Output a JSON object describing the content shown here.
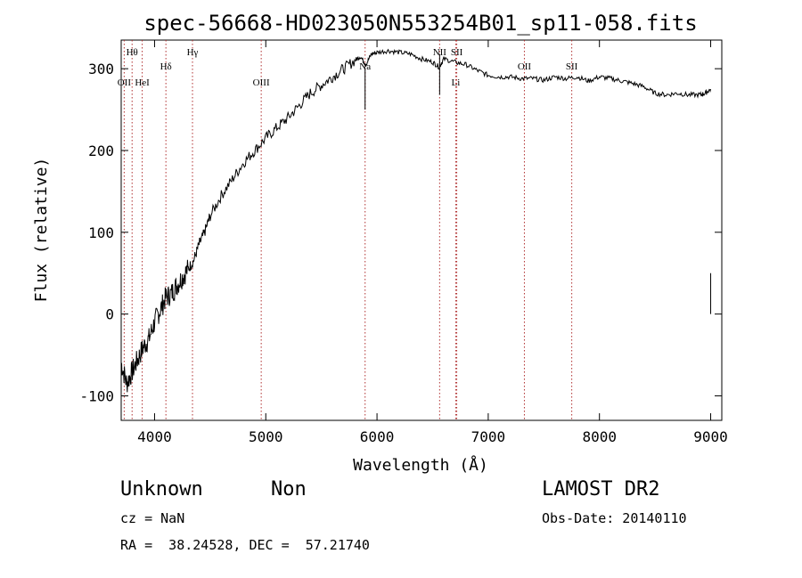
{
  "chart_data": {
    "type": "line",
    "title": "spec-56668-HD023050N553254B01_sp11-058.fits",
    "xlabel": "Wavelength (Å)",
    "ylabel": "Flux (relative)",
    "xlim": [
      3700,
      9100
    ],
    "ylim": [
      -130,
      335
    ],
    "xticks": [
      "4000",
      "5000",
      "6000",
      "7000",
      "8000",
      "9000"
    ],
    "yticks": [
      "-100",
      "0",
      "100",
      "200",
      "300"
    ],
    "grid": false,
    "series": [
      {
        "x": [
          3700,
          3750,
          3800,
          3850,
          3900,
          3950,
          4000,
          4050,
          4100,
          4150,
          4200,
          4250,
          4300,
          4350,
          4400,
          4450,
          4500,
          4600,
          4700,
          4800,
          4900,
          5000,
          5100,
          5200,
          5300,
          5400,
          5500,
          5600,
          5700,
          5800,
          5850,
          5900,
          5950,
          6000,
          6100,
          6200,
          6300,
          6400,
          6500,
          6560,
          6600,
          6700,
          6800,
          6900,
          7000,
          7100,
          7200,
          7300,
          7400,
          7500,
          7600,
          7700,
          7800,
          7900,
          8000,
          8100,
          8200,
          8300,
          8400,
          8500,
          8600,
          8700,
          8800,
          8900,
          8950,
          9000
        ],
        "y": [
          -60,
          -85,
          -70,
          -55,
          -40,
          -30,
          -10,
          5,
          20,
          25,
          35,
          45,
          55,
          65,
          85,
          100,
          120,
          145,
          165,
          185,
          200,
          215,
          228,
          240,
          255,
          270,
          280,
          290,
          300,
          310,
          315,
          305,
          318,
          320,
          322,
          320,
          318,
          312,
          308,
          302,
          312,
          308,
          305,
          298,
          292,
          290,
          290,
          288,
          288,
          286,
          290,
          288,
          290,
          285,
          290,
          288,
          285,
          282,
          278,
          270,
          268,
          270,
          268,
          268,
          270,
          275
        ]
      }
    ],
    "lines": [
      {
        "label": "OII",
        "x": 3727,
        "row": "lower"
      },
      {
        "label": "Hθ",
        "x": 3798,
        "row": "top"
      },
      {
        "label": "HeI",
        "x": 3889,
        "row": "lower"
      },
      {
        "label": "Hδ",
        "x": 4102,
        "row": "middle"
      },
      {
        "label": "Hγ",
        "x": 4341,
        "row": "top"
      },
      {
        "label": "OIII",
        "x": 4959,
        "row": "lower"
      },
      {
        "label": "Na",
        "x": 5893,
        "row": "middle"
      },
      {
        "label": "NII",
        "x": 6563,
        "row": "top"
      },
      {
        "label": "Li",
        "x": 6708,
        "row": "lower"
      },
      {
        "label": "SII",
        "x": 6717,
        "row": "top"
      },
      {
        "label": "OII",
        "x": 7325,
        "row": "middle"
      },
      {
        "label": "SII",
        "x": 7751,
        "row": "middle"
      }
    ]
  },
  "info": {
    "class": "Unknown",
    "subclass": "Non",
    "cz": "cz = NaN",
    "radec": "RA =  38.24528, DEC =  57.21740",
    "survey": "LAMOST DR2",
    "obsdate": "Obs-Date: 20140110"
  }
}
